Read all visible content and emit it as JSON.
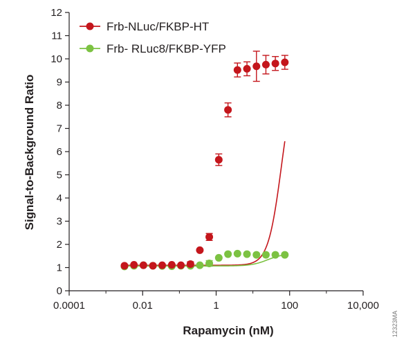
{
  "chart_data": {
    "type": "scatter",
    "title": "",
    "xlabel": "Rapamycin (nM)",
    "ylabel": "Signal-to-Background Ratio",
    "x_scale": "log",
    "xlim": [
      0.0001,
      10000
    ],
    "ylim": [
      0,
      12
    ],
    "x_ticks": [
      0.0001,
      0.01,
      1,
      100,
      10000
    ],
    "x_tick_labels": [
      "0.0001",
      "0.01",
      "1",
      "100",
      "10,000"
    ],
    "y_ticks": [
      0,
      1,
      2,
      3,
      4,
      5,
      6,
      7,
      8,
      9,
      10,
      11,
      12
    ],
    "y_tick_labels": [
      "0",
      "1",
      "2",
      "3",
      "4",
      "5",
      "6",
      "7",
      "8",
      "9",
      "10",
      "11",
      "12"
    ],
    "grid": false,
    "legend_position": "top-left",
    "series": [
      {
        "name": "Frb-NLuc/FKBP-HT",
        "color": "#c4161c",
        "x": [
          0.0032,
          0.0058,
          0.0105,
          0.019,
          0.034,
          0.062,
          0.11,
          0.2,
          0.36,
          0.65,
          1.18,
          2.1,
          3.8,
          6.9,
          12.5,
          22.6,
          40.9,
          74
        ],
        "y": [
          1.08,
          1.12,
          1.1,
          1.08,
          1.1,
          1.12,
          1.1,
          1.15,
          1.75,
          2.32,
          5.65,
          7.8,
          9.52,
          9.57,
          9.68,
          9.75,
          9.8,
          9.85
        ],
        "error": [
          0.08,
          0.08,
          0.08,
          0.06,
          0.06,
          0.08,
          0.08,
          0.1,
          0.08,
          0.15,
          0.25,
          0.3,
          0.3,
          0.3,
          0.65,
          0.4,
          0.3,
          0.3
        ],
        "fit": {
          "bottom": 1.1,
          "top": 9.68,
          "ec50": 60,
          "hill": 2.4
        }
      },
      {
        "name": "Frb- RLuc8/FKBP-YFP",
        "color": "#7cc242",
        "x": [
          0.0032,
          0.0058,
          0.0105,
          0.019,
          0.034,
          0.062,
          0.11,
          0.2,
          0.36,
          0.65,
          1.18,
          2.1,
          3.8,
          6.9,
          12.5,
          22.6,
          40.9,
          74
        ],
        "y": [
          1.05,
          1.08,
          1.1,
          1.08,
          1.07,
          1.06,
          1.08,
          1.08,
          1.1,
          1.18,
          1.42,
          1.58,
          1.6,
          1.58,
          1.55,
          1.55,
          1.55,
          1.55
        ],
        "error": [
          0.05,
          0.05,
          0.05,
          0.05,
          0.05,
          0.05,
          0.05,
          0.05,
          0.05,
          0.12,
          0.06,
          0.06,
          0.06,
          0.06,
          0.05,
          0.05,
          0.05,
          0.05
        ],
        "fit": {
          "bottom": 1.07,
          "top": 1.6,
          "ec50": 25,
          "hill": 2.0
        }
      }
    ]
  },
  "catalog_number": "12323MA"
}
